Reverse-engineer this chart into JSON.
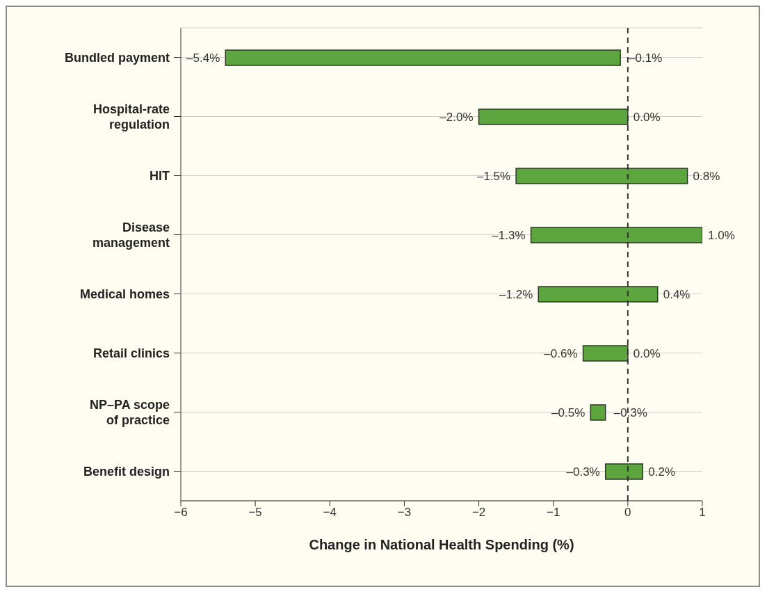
{
  "chart_data": {
    "type": "bar",
    "orientation": "horizontal",
    "xlabel": "Change in National Health Spending (%)",
    "categories": [
      "Bundled payment",
      "Hospital-rate regulation",
      "HIT",
      "Disease management",
      "Medical homes",
      "Retail clinics",
      "NP–PA scope of practice",
      "Benefit design"
    ],
    "base": [
      -5.4,
      -2.0,
      -1.5,
      -1.3,
      -1.2,
      -0.6,
      -0.5,
      -0.3
    ],
    "values": [
      5.3,
      2.0,
      2.3,
      2.3,
      1.6,
      0.6,
      0.2,
      0.5
    ],
    "color": "#5ca53f",
    "xlim": [
      -6,
      1
    ],
    "xticks": [
      -6,
      -5,
      -4,
      -3,
      -2,
      -1,
      0,
      1
    ],
    "grid": "y",
    "ref_lines": [
      {
        "axis": "x",
        "value": 0,
        "line_style": "dashed",
        "color": "#333333"
      }
    ],
    "annotations": [
      {
        "text": "–5.4%",
        "x": -5.4,
        "y": "Bundled payment"
      },
      {
        "text": "–0.1%",
        "x": -0.1,
        "y": "Bundled payment"
      },
      {
        "text": "–2.0%",
        "x": -2.0,
        "y": "Hospital-rate regulation"
      },
      {
        "text": "0.0%",
        "x": 0.0,
        "y": "Hospital-rate regulation"
      },
      {
        "text": "–1.5%",
        "x": -1.5,
        "y": "HIT"
      },
      {
        "text": "0.8%",
        "x": 0.8,
        "y": "HIT"
      },
      {
        "text": "–1.3%",
        "x": -1.3,
        "y": "Disease management"
      },
      {
        "text": "1.0%",
        "x": 1.0,
        "y": "Disease management"
      },
      {
        "text": "–1.2%",
        "x": -1.2,
        "y": "Medical homes"
      },
      {
        "text": "0.4%",
        "x": 0.4,
        "y": "Medical homes"
      },
      {
        "text": "–0.6%",
        "x": -0.6,
        "y": "Retail clinics"
      },
      {
        "text": "0.0%",
        "x": 0.0,
        "y": "Retail clinics"
      },
      {
        "text": "–0.5%",
        "x": -0.5,
        "y": "NP–PA scope of practice"
      },
      {
        "text": "–0.3%",
        "x": -0.3,
        "y": "NP–PA scope of practice"
      },
      {
        "text": "–0.3%",
        "x": -0.3,
        "y": "Benefit design"
      },
      {
        "text": "0.2%",
        "x": 0.2,
        "y": "Benefit design"
      }
    ]
  }
}
